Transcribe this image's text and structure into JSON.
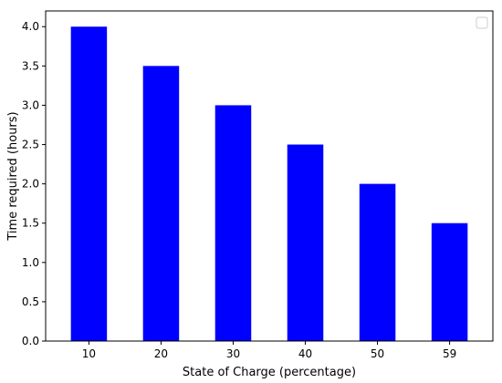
{
  "chart_data": {
    "type": "bar",
    "categories": [
      "10",
      "20",
      "30",
      "40",
      "50",
      "59"
    ],
    "values": [
      4.0,
      3.5,
      3.0,
      2.5,
      2.0,
      1.5
    ],
    "title": "",
    "xlabel": "State of Charge (percentage)",
    "ylabel": "Time required (hours)",
    "ylim": [
      0,
      4.2
    ],
    "yticks": [
      "0.0",
      "0.5",
      "1.0",
      "1.5",
      "2.0",
      "2.5",
      "3.0",
      "3.5",
      "4.0"
    ],
    "bar_color": "#0000ff",
    "grid": false,
    "legend": {
      "placement": "top-right",
      "entries": []
    }
  }
}
